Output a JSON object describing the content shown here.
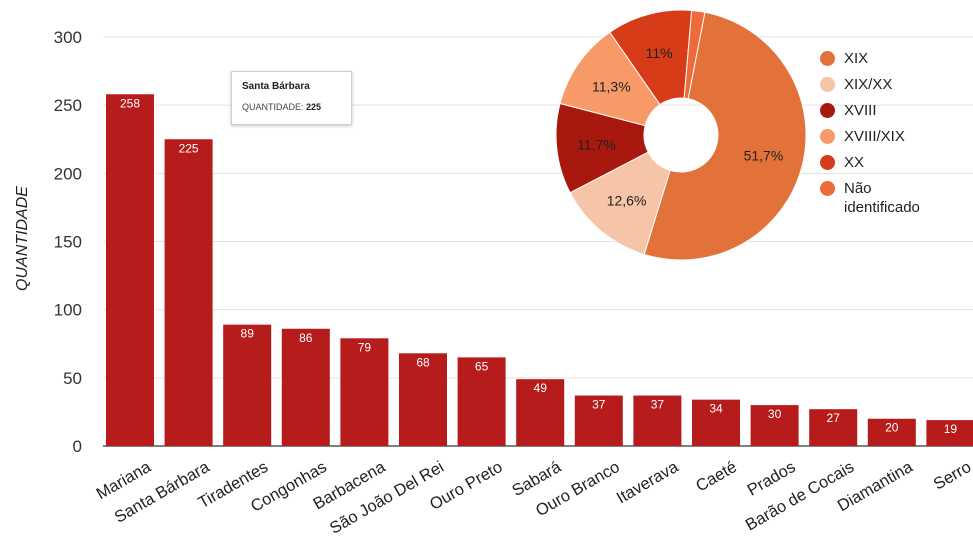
{
  "chart_data": [
    {
      "type": "bar",
      "ylabel": "QUANTIDADE",
      "ylim": [
        0,
        300
      ],
      "yticks": [
        0,
        50,
        100,
        150,
        200,
        250,
        300
      ],
      "grid": true,
      "bar_color": "#b71c1c",
      "categories": [
        "Mariana",
        "Santa Bárbara",
        "Tiradentes",
        "Congonhas",
        "Barbacena",
        "São João Del Rei",
        "Ouro Preto",
        "Sabará",
        "Ouro Branco",
        "Itaverava",
        "Caeté",
        "Prados",
        "Barão de Cocais",
        "Diamantina",
        "Serro"
      ],
      "values": [
        258,
        225,
        89,
        86,
        79,
        68,
        65,
        49,
        37,
        37,
        34,
        30,
        27,
        20,
        19
      ],
      "tooltip": {
        "title": "Santa Bárbara",
        "label": "QUANTIDADE:",
        "value": "225"
      }
    },
    {
      "type": "pie",
      "donut": true,
      "legend_position": "right",
      "slices": [
        {
          "label": "XIX",
          "value": 51.7,
          "display": "51,7%",
          "color": "#e2713a"
        },
        {
          "label": "XIX/XX",
          "value": 12.6,
          "display": "12,6%",
          "color": "#f6c4a6"
        },
        {
          "label": "XVIII",
          "value": 11.7,
          "display": "11,7%",
          "color": "#a8180f"
        },
        {
          "label": "XVIII/XIX",
          "value": 11.3,
          "display": "11,3%",
          "color": "#f79a68"
        },
        {
          "label": "XX",
          "value": 11.0,
          "display": "11%",
          "color": "#d63c18"
        },
        {
          "label": "Não identificado",
          "value": 1.7,
          "display": "",
          "color": "#ef6a3a"
        }
      ]
    }
  ]
}
